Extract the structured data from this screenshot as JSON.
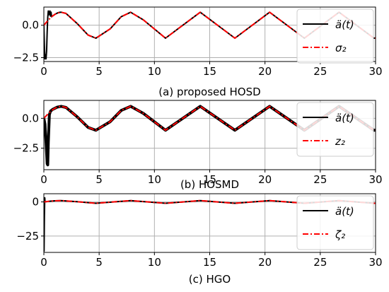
{
  "colors": {
    "true_series": "#000000",
    "est_series": "#ff0000",
    "grid": "#b0b0b0",
    "legend_border": "#cccccc"
  },
  "chart_data": [
    {
      "type": "line",
      "caption": "(a) proposed HOSD",
      "xlim": [
        0,
        30
      ],
      "ylim": [
        -2.8,
        1.4
      ],
      "xticks": [
        0,
        5,
        10,
        15,
        20,
        25,
        30
      ],
      "yticks": [
        -2.5,
        0.0
      ],
      "ytick_labels": [
        "−2.5",
        "0.0"
      ],
      "grid": true,
      "legend_placement": "top-right",
      "series": [
        {
          "name": "ä(t)",
          "style": "solid",
          "color": "#000000",
          "x": [
            0,
            0.05,
            0.1,
            0.15,
            0.2,
            0.25,
            0.3,
            0.35,
            0.4,
            0.45,
            0.5,
            0.55,
            0.6,
            0.65,
            0.7,
            0.8,
            0.9,
            1.0,
            1.2,
            1.4,
            1.57,
            2.0,
            3.0,
            4.0,
            4.71,
            6.0,
            7.0,
            7.85,
            9.0,
            11.0,
            14.14,
            17.28,
            20.42,
            23.56,
            26.7,
            29.85,
            30
          ],
          "y": [
            0,
            -1.6,
            -2.6,
            -2.3,
            -2.6,
            -2.0,
            -0.5,
            0.6,
            1.1,
            0.8,
            0.9,
            1.1,
            0.7,
            1.0,
            0.65,
            0.72,
            0.78,
            0.84,
            0.93,
            0.99,
            1.0,
            0.91,
            0.14,
            -0.76,
            -1.0,
            -0.28,
            0.66,
            1.0,
            0.41,
            -1.0,
            1.0,
            -1.0,
            1.0,
            -1.0,
            1.0,
            -1.0,
            -0.99
          ]
        },
        {
          "name": "σ₂",
          "style": "dashdot",
          "color": "#ff0000",
          "x": [
            0,
            0.3,
            0.6,
            0.8,
            1.0,
            1.2,
            1.57,
            2.0,
            3.0,
            4.0,
            4.71,
            6.0,
            7.0,
            7.85,
            9.0,
            11.0,
            14.14,
            17.28,
            20.42,
            23.56,
            26.7,
            29.85,
            30
          ],
          "y": [
            0,
            0.3,
            0.57,
            0.72,
            0.84,
            0.93,
            1.0,
            0.91,
            0.14,
            -0.76,
            -1.0,
            -0.28,
            0.66,
            1.0,
            0.41,
            -1.0,
            1.0,
            -1.0,
            1.0,
            -1.0,
            1.0,
            -1.0,
            -0.99
          ]
        }
      ]
    },
    {
      "type": "line",
      "caption": "(b) HOSMD",
      "xlim": [
        0,
        30
      ],
      "ylim": [
        -4.3,
        1.5
      ],
      "xticks": [
        0,
        5,
        10,
        15,
        20,
        25,
        30
      ],
      "yticks": [
        -2.5,
        0.0
      ],
      "ytick_labels": [
        "−2.5",
        "0.0"
      ],
      "grid": true,
      "legend_placement": "top-right",
      "series": [
        {
          "name": "ä(t)",
          "style": "solid-thick",
          "color": "#000000",
          "x": [
            0,
            0.1,
            0.2,
            0.3,
            0.35,
            0.4,
            0.5,
            0.6,
            0.8,
            1.0,
            1.2,
            1.57,
            2.0,
            3.0,
            4.0,
            4.71,
            6.0,
            7.0,
            7.85,
            9.0,
            11.0,
            14.14,
            17.28,
            20.42,
            23.56,
            26.7,
            29.85,
            30
          ],
          "y": [
            0,
            -0.5,
            -2.0,
            -3.8,
            -3.9,
            -2.0,
            0.3,
            0.6,
            0.75,
            0.84,
            0.93,
            1.0,
            0.91,
            0.14,
            -0.76,
            -1.0,
            -0.28,
            0.66,
            1.0,
            0.41,
            -1.0,
            1.0,
            -1.0,
            1.0,
            -1.0,
            1.0,
            -1.0,
            -0.99
          ]
        },
        {
          "name": "z₂",
          "style": "dashdot",
          "color": "#ff0000",
          "x": [
            0,
            0.3,
            0.6,
            0.8,
            1.0,
            1.2,
            1.57,
            2.0,
            3.0,
            4.0,
            4.71,
            6.0,
            7.0,
            7.85,
            9.0,
            11.0,
            14.14,
            17.28,
            20.42,
            23.56,
            26.7,
            29.85,
            30
          ],
          "y": [
            0,
            0.3,
            0.57,
            0.72,
            0.84,
            0.93,
            1.0,
            0.91,
            0.14,
            -0.76,
            -1.0,
            -0.28,
            0.66,
            1.0,
            0.41,
            -1.0,
            1.0,
            -1.0,
            1.0,
            -1.0,
            1.0,
            -1.0,
            -0.99
          ]
        }
      ]
    },
    {
      "type": "line",
      "caption": "(c) HGO",
      "xlim": [
        0,
        30
      ],
      "ylim": [
        -37,
        6
      ],
      "xticks": [
        0,
        5,
        10,
        15,
        20,
        25,
        30
      ],
      "yticks": [
        -25,
        0
      ],
      "ytick_labels": [
        "−25",
        "0"
      ],
      "grid": true,
      "legend_placement": "top-right",
      "series": [
        {
          "name": "ä(t)",
          "style": "solid",
          "color": "#000000",
          "x": [
            0,
            0.02,
            0.05,
            0.08,
            0.1,
            0.2,
            0.6,
            1.0,
            1.57,
            3.0,
            4.71,
            7.85,
            11.0,
            14.14,
            17.28,
            20.42,
            23.56,
            26.7,
            29.85,
            30
          ],
          "y": [
            0,
            -36,
            -10,
            3,
            0.2,
            0.2,
            0.57,
            0.84,
            1.0,
            0.14,
            -1.0,
            1.0,
            -1.0,
            1.0,
            -1.0,
            1.0,
            -1.0,
            1.0,
            -1.0,
            -0.99
          ]
        },
        {
          "name": "ζ₂",
          "style": "dashdot",
          "color": "#ff0000",
          "x": [
            0,
            0.6,
            1.0,
            1.57,
            3.0,
            4.71,
            7.85,
            11.0,
            14.14,
            17.28,
            20.42,
            23.56,
            26.7,
            29.85,
            30
          ],
          "y": [
            0,
            0.57,
            0.84,
            1.0,
            0.14,
            -1.0,
            1.0,
            -1.0,
            1.0,
            -1.0,
            1.0,
            -1.0,
            1.0,
            -1.0,
            -0.99
          ]
        }
      ]
    }
  ]
}
